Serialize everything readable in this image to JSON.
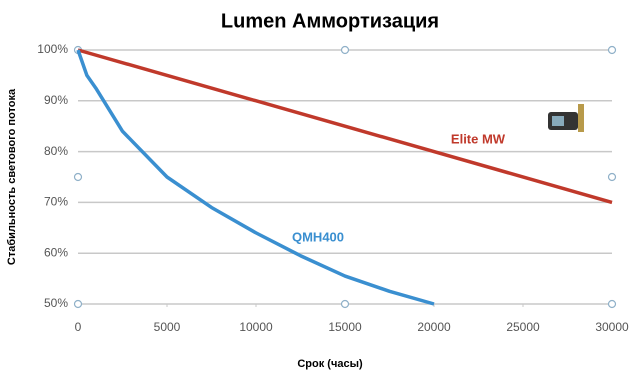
{
  "chart_data": {
    "type": "line",
    "title": "Lumen Аммортизация",
    "x_label": "Срок (часы)",
    "y_label": "Стабильность светового потока",
    "xlim": [
      0,
      30000
    ],
    "xticks": [
      0,
      5000,
      10000,
      15000,
      20000,
      25000,
      30000
    ],
    "ylim": [
      50,
      100
    ],
    "yticks": [
      {
        "value": 50,
        "label": "50%"
      },
      {
        "value": 60,
        "label": "60%"
      },
      {
        "value": 70,
        "label": "70%"
      },
      {
        "value": 80,
        "label": "80%"
      },
      {
        "value": 90,
        "label": "90%"
      },
      {
        "value": 100,
        "label": "100%"
      }
    ],
    "grid": true,
    "series": [
      {
        "name": "Elite MW",
        "color": "#c0392b",
        "x": [
          0,
          30000
        ],
        "values": [
          100,
          70
        ]
      },
      {
        "name": "QMH400",
        "color": "#3a8fd0",
        "x": [
          0,
          500,
          1000,
          2500,
          5000,
          7500,
          10000,
          12500,
          15000,
          17500,
          20000
        ],
        "values": [
          100,
          95,
          92.5,
          84,
          75,
          69,
          64,
          59.5,
          55.5,
          52.5,
          50
        ]
      }
    ]
  }
}
